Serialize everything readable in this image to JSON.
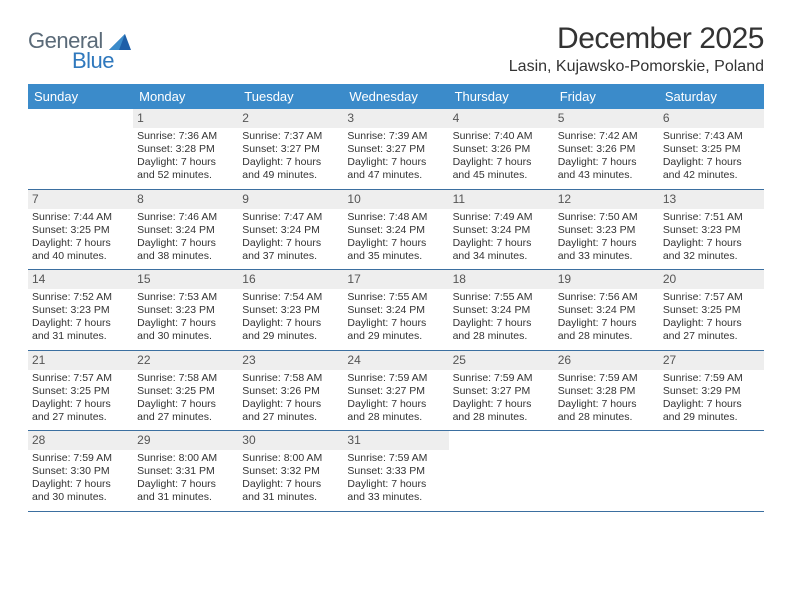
{
  "logo": {
    "general": "General",
    "blue": "Blue"
  },
  "title": "December 2025",
  "location": "Lasin, Kujawsko-Pomorskie, Poland",
  "colors": {
    "header_bg": "#3b8bca",
    "header_text": "#ffffff",
    "num_bg": "#eeeeee",
    "week_border": "#3b6fa0",
    "logo_gray": "#5a6a78",
    "logo_blue": "#2f78bd",
    "body_text": "#333333"
  },
  "day_headers": [
    "Sunday",
    "Monday",
    "Tuesday",
    "Wednesday",
    "Thursday",
    "Friday",
    "Saturday"
  ],
  "weeks": [
    [
      {
        "num": "",
        "lines": []
      },
      {
        "num": "1",
        "lines": [
          "Sunrise: 7:36 AM",
          "Sunset: 3:28 PM",
          "Daylight: 7 hours and 52 minutes."
        ]
      },
      {
        "num": "2",
        "lines": [
          "Sunrise: 7:37 AM",
          "Sunset: 3:27 PM",
          "Daylight: 7 hours and 49 minutes."
        ]
      },
      {
        "num": "3",
        "lines": [
          "Sunrise: 7:39 AM",
          "Sunset: 3:27 PM",
          "Daylight: 7 hours and 47 minutes."
        ]
      },
      {
        "num": "4",
        "lines": [
          "Sunrise: 7:40 AM",
          "Sunset: 3:26 PM",
          "Daylight: 7 hours and 45 minutes."
        ]
      },
      {
        "num": "5",
        "lines": [
          "Sunrise: 7:42 AM",
          "Sunset: 3:26 PM",
          "Daylight: 7 hours and 43 minutes."
        ]
      },
      {
        "num": "6",
        "lines": [
          "Sunrise: 7:43 AM",
          "Sunset: 3:25 PM",
          "Daylight: 7 hours and 42 minutes."
        ]
      }
    ],
    [
      {
        "num": "7",
        "lines": [
          "Sunrise: 7:44 AM",
          "Sunset: 3:25 PM",
          "Daylight: 7 hours and 40 minutes."
        ]
      },
      {
        "num": "8",
        "lines": [
          "Sunrise: 7:46 AM",
          "Sunset: 3:24 PM",
          "Daylight: 7 hours and 38 minutes."
        ]
      },
      {
        "num": "9",
        "lines": [
          "Sunrise: 7:47 AM",
          "Sunset: 3:24 PM",
          "Daylight: 7 hours and 37 minutes."
        ]
      },
      {
        "num": "10",
        "lines": [
          "Sunrise: 7:48 AM",
          "Sunset: 3:24 PM",
          "Daylight: 7 hours and 35 minutes."
        ]
      },
      {
        "num": "11",
        "lines": [
          "Sunrise: 7:49 AM",
          "Sunset: 3:24 PM",
          "Daylight: 7 hours and 34 minutes."
        ]
      },
      {
        "num": "12",
        "lines": [
          "Sunrise: 7:50 AM",
          "Sunset: 3:23 PM",
          "Daylight: 7 hours and 33 minutes."
        ]
      },
      {
        "num": "13",
        "lines": [
          "Sunrise: 7:51 AM",
          "Sunset: 3:23 PM",
          "Daylight: 7 hours and 32 minutes."
        ]
      }
    ],
    [
      {
        "num": "14",
        "lines": [
          "Sunrise: 7:52 AM",
          "Sunset: 3:23 PM",
          "Daylight: 7 hours and 31 minutes."
        ]
      },
      {
        "num": "15",
        "lines": [
          "Sunrise: 7:53 AM",
          "Sunset: 3:23 PM",
          "Daylight: 7 hours and 30 minutes."
        ]
      },
      {
        "num": "16",
        "lines": [
          "Sunrise: 7:54 AM",
          "Sunset: 3:23 PM",
          "Daylight: 7 hours and 29 minutes."
        ]
      },
      {
        "num": "17",
        "lines": [
          "Sunrise: 7:55 AM",
          "Sunset: 3:24 PM",
          "Daylight: 7 hours and 29 minutes."
        ]
      },
      {
        "num": "18",
        "lines": [
          "Sunrise: 7:55 AM",
          "Sunset: 3:24 PM",
          "Daylight: 7 hours and 28 minutes."
        ]
      },
      {
        "num": "19",
        "lines": [
          "Sunrise: 7:56 AM",
          "Sunset: 3:24 PM",
          "Daylight: 7 hours and 28 minutes."
        ]
      },
      {
        "num": "20",
        "lines": [
          "Sunrise: 7:57 AM",
          "Sunset: 3:25 PM",
          "Daylight: 7 hours and 27 minutes."
        ]
      }
    ],
    [
      {
        "num": "21",
        "lines": [
          "Sunrise: 7:57 AM",
          "Sunset: 3:25 PM",
          "Daylight: 7 hours and 27 minutes."
        ]
      },
      {
        "num": "22",
        "lines": [
          "Sunrise: 7:58 AM",
          "Sunset: 3:25 PM",
          "Daylight: 7 hours and 27 minutes."
        ]
      },
      {
        "num": "23",
        "lines": [
          "Sunrise: 7:58 AM",
          "Sunset: 3:26 PM",
          "Daylight: 7 hours and 27 minutes."
        ]
      },
      {
        "num": "24",
        "lines": [
          "Sunrise: 7:59 AM",
          "Sunset: 3:27 PM",
          "Daylight: 7 hours and 28 minutes."
        ]
      },
      {
        "num": "25",
        "lines": [
          "Sunrise: 7:59 AM",
          "Sunset: 3:27 PM",
          "Daylight: 7 hours and 28 minutes."
        ]
      },
      {
        "num": "26",
        "lines": [
          "Sunrise: 7:59 AM",
          "Sunset: 3:28 PM",
          "Daylight: 7 hours and 28 minutes."
        ]
      },
      {
        "num": "27",
        "lines": [
          "Sunrise: 7:59 AM",
          "Sunset: 3:29 PM",
          "Daylight: 7 hours and 29 minutes."
        ]
      }
    ],
    [
      {
        "num": "28",
        "lines": [
          "Sunrise: 7:59 AM",
          "Sunset: 3:30 PM",
          "Daylight: 7 hours and 30 minutes."
        ]
      },
      {
        "num": "29",
        "lines": [
          "Sunrise: 8:00 AM",
          "Sunset: 3:31 PM",
          "Daylight: 7 hours and 31 minutes."
        ]
      },
      {
        "num": "30",
        "lines": [
          "Sunrise: 8:00 AM",
          "Sunset: 3:32 PM",
          "Daylight: 7 hours and 31 minutes."
        ]
      },
      {
        "num": "31",
        "lines": [
          "Sunrise: 7:59 AM",
          "Sunset: 3:33 PM",
          "Daylight: 7 hours and 33 minutes."
        ]
      },
      {
        "num": "",
        "lines": []
      },
      {
        "num": "",
        "lines": []
      },
      {
        "num": "",
        "lines": []
      }
    ]
  ]
}
